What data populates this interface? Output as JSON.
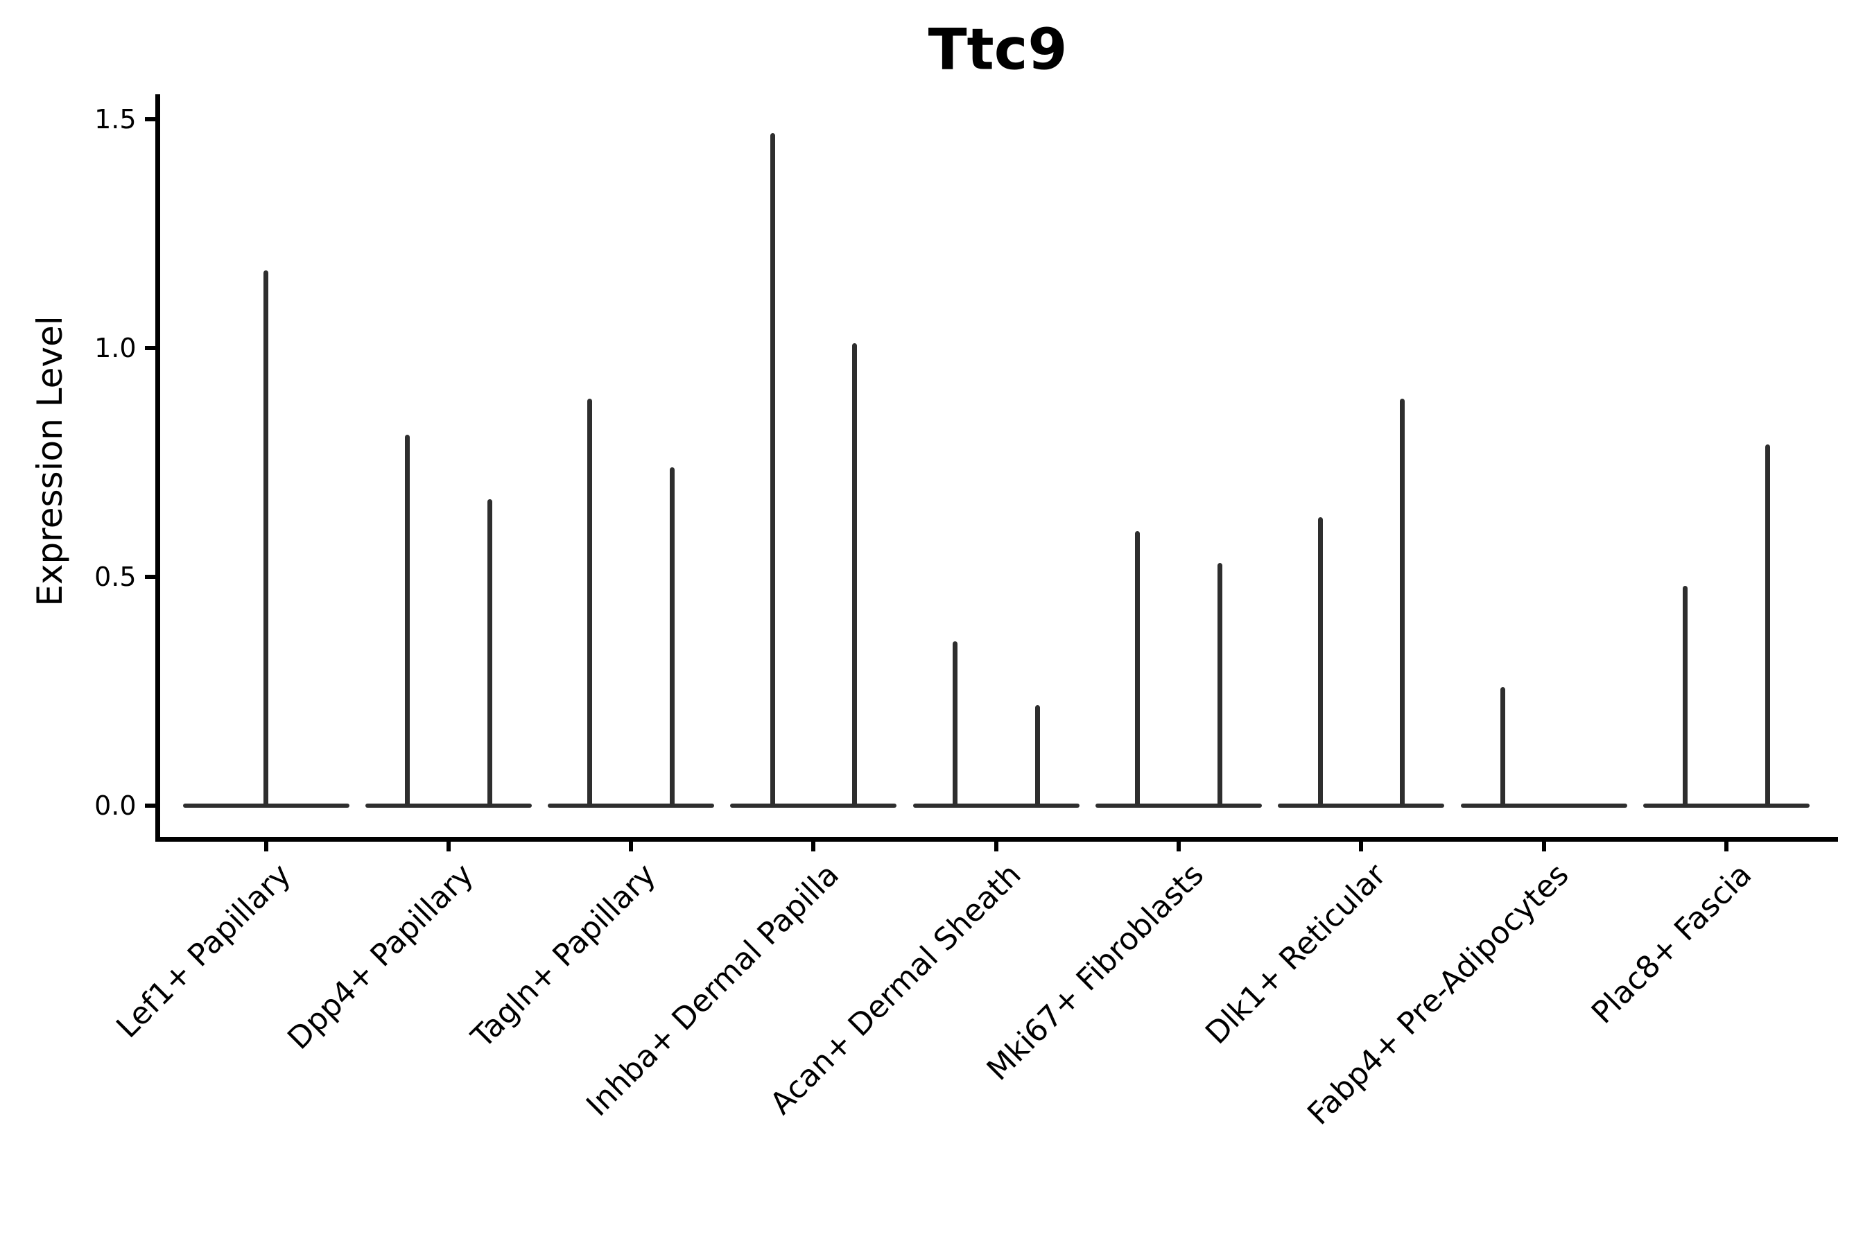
{
  "title": "Ttc9",
  "axes": {
    "y_label": "Expression Level",
    "y_tick_labels": [
      "0.0",
      "0.5",
      "1.0",
      "1.5"
    ],
    "y_tick_values": [
      0.0,
      0.5,
      1.0,
      1.5
    ]
  },
  "colors": {
    "background": "#ffffff",
    "violin_line": "#2e2e2e",
    "axis_line": "#000000",
    "text": "#000000"
  },
  "chart_data": {
    "type": "violin",
    "title": "Ttc9",
    "xlabel": "",
    "ylabel": "Expression Level",
    "ylim": [
      -0.07,
      1.55
    ],
    "yticks": [
      0.0,
      0.5,
      1.0,
      1.5
    ],
    "grid": false,
    "legend": "none",
    "style_note": "Collapsed violins: nearly all zeros form a flat horizontal bar at y=0 (full category width); each group's non-zero tail collapses to a thin vertical spike reaching its maximum expression. Two dodged groups per category except where noted.",
    "categories": [
      "Lef1+ Papillary",
      "Dpp4+ Papillary",
      "Tagln+ Papillary",
      "Inhba+ Dermal Papilla",
      "Acan+ Dermal Sheath",
      "Mki67+ Fibroblasts",
      "Dlk1+ Reticular",
      "Fabp4+ Pre-Adipocytes",
      "Plac8+ Fascia"
    ],
    "series": [
      {
        "category": "Lef1+ Papillary",
        "violins": [
          {
            "position": "center",
            "zero_bulk": true,
            "max": 1.17
          }
        ]
      },
      {
        "category": "Dpp4+ Papillary",
        "violins": [
          {
            "position": "left",
            "zero_bulk": true,
            "max": 0.81
          },
          {
            "position": "right",
            "zero_bulk": true,
            "max": 0.67
          }
        ]
      },
      {
        "category": "Tagln+ Papillary",
        "violins": [
          {
            "position": "left",
            "zero_bulk": true,
            "max": 0.89
          },
          {
            "position": "right",
            "zero_bulk": true,
            "max": 0.74
          }
        ]
      },
      {
        "category": "Inhba+ Dermal Papilla",
        "violins": [
          {
            "position": "left",
            "zero_bulk": true,
            "max": 1.47
          },
          {
            "position": "right",
            "zero_bulk": true,
            "max": 1.01
          }
        ]
      },
      {
        "category": "Acan+ Dermal Sheath",
        "violins": [
          {
            "position": "left",
            "zero_bulk": true,
            "max": 0.36
          },
          {
            "position": "right",
            "zero_bulk": true,
            "max": 0.22
          }
        ]
      },
      {
        "category": "Mki67+ Fibroblasts",
        "violins": [
          {
            "position": "left",
            "zero_bulk": true,
            "max": 0.6
          },
          {
            "position": "right",
            "zero_bulk": true,
            "max": 0.53
          }
        ]
      },
      {
        "category": "Dlk1+ Reticular",
        "violins": [
          {
            "position": "left",
            "zero_bulk": true,
            "max": 0.63
          },
          {
            "position": "right",
            "zero_bulk": true,
            "max": 0.89
          }
        ]
      },
      {
        "category": "Fabp4+ Pre-Adipocytes",
        "violins": [
          {
            "position": "left",
            "zero_bulk": true,
            "max": 0.26
          }
        ]
      },
      {
        "category": "Plac8+ Fascia",
        "violins": [
          {
            "position": "left",
            "zero_bulk": true,
            "max": 0.48
          },
          {
            "position": "right",
            "zero_bulk": true,
            "max": 0.79
          }
        ]
      }
    ]
  }
}
